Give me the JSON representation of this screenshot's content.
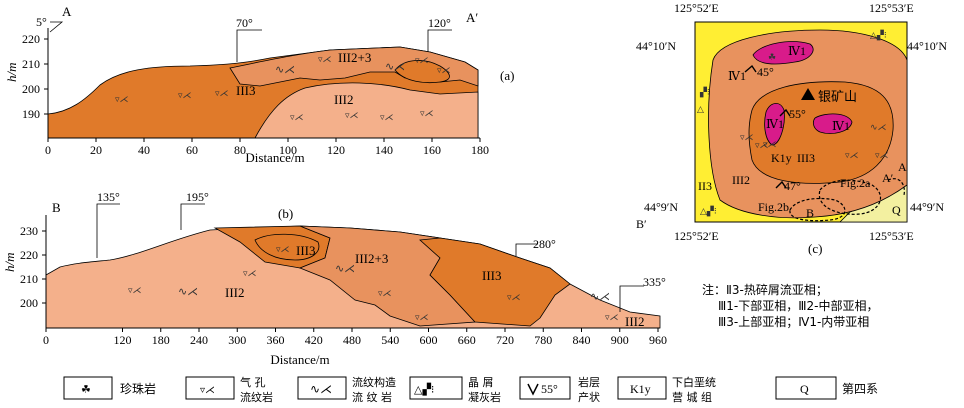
{
  "panel_a": {
    "label": "(a)",
    "start_label": "A",
    "end_label": "A′",
    "ylabel": "h/m",
    "xlabel": "Distance/m",
    "y_ticks": [
      "190",
      "200",
      "210",
      "220"
    ],
    "x_ticks": [
      "0",
      "20",
      "40",
      "60",
      "80",
      "100",
      "120",
      "140",
      "160",
      "180"
    ],
    "dips": [
      "5°",
      "70°",
      "120°"
    ],
    "units": [
      "III3",
      "III2+3",
      "III2"
    ]
  },
  "panel_b": {
    "label": "(b)",
    "start_label": "B",
    "ylabel": "h/m",
    "xlabel": "Distance/m",
    "y_ticks": [
      "200",
      "210",
      "220",
      "230"
    ],
    "x_ticks": [
      "0",
      "120",
      "180",
      "240",
      "300",
      "360",
      "420",
      "480",
      "540",
      "600",
      "660",
      "720",
      "780",
      "840",
      "900",
      "960"
    ],
    "dips": [
      "135°",
      "195°",
      "280°",
      "335°"
    ],
    "units": [
      "III2",
      "III3",
      "III2+3",
      "III3",
      "III2"
    ]
  },
  "map_c": {
    "label": "(c)",
    "lon_left": "125°52′E",
    "lon_right": "125°53′E",
    "lat_top": "44°10′N",
    "lat_bottom": "44°9′N",
    "mine": "银矿山",
    "labels": [
      "Ⅳ1",
      "Ⅳ1",
      "Ⅳ1",
      "Ⅳ1",
      "III3",
      "II3",
      "III2",
      "K1y",
      "Fig.2a",
      "Fig.2b",
      "Q"
    ],
    "dip_values": [
      "45°",
      "55°",
      "47°"
    ],
    "point_labels": [
      "A",
      "A′",
      "B",
      "B′"
    ]
  },
  "note": {
    "title": "注：Ⅱ3-热碎屑流亚相；",
    "line2": "Ⅲ1-下部亚相，Ⅲ2-中部亚相，",
    "line3": "Ⅲ3-上部亚相；Ⅳ1-内带亚相"
  },
  "legend": [
    {
      "key": "perlite",
      "label": "珍珠岩"
    },
    {
      "key": "vesicular",
      "label_top": "气  孔",
      "label_bottom": "流纹岩"
    },
    {
      "key": "flow",
      "label_top": "流纹构造",
      "label_bottom": "流 纹 岩"
    },
    {
      "key": "tuff",
      "label_top": "晶  屑",
      "label_bottom": "凝灰岩"
    },
    {
      "key": "attitude",
      "symbol_value": "55°",
      "label_top": "岩层",
      "label_bottom": "产状"
    },
    {
      "key": "formation",
      "symbol_value": "K1y",
      "label_top": "下白垩统",
      "label_bottom": "营 城 组"
    },
    {
      "key": "quaternary",
      "symbol_value": "Q",
      "label": "第四系"
    }
  ],
  "colors": {
    "III3": "#e07a2a",
    "III2+3": "#e8925e",
    "III2": "#f4b08b",
    "IV1": "#d81b8a",
    "II3": "#ffee33",
    "Q": "#f3f0a0"
  }
}
